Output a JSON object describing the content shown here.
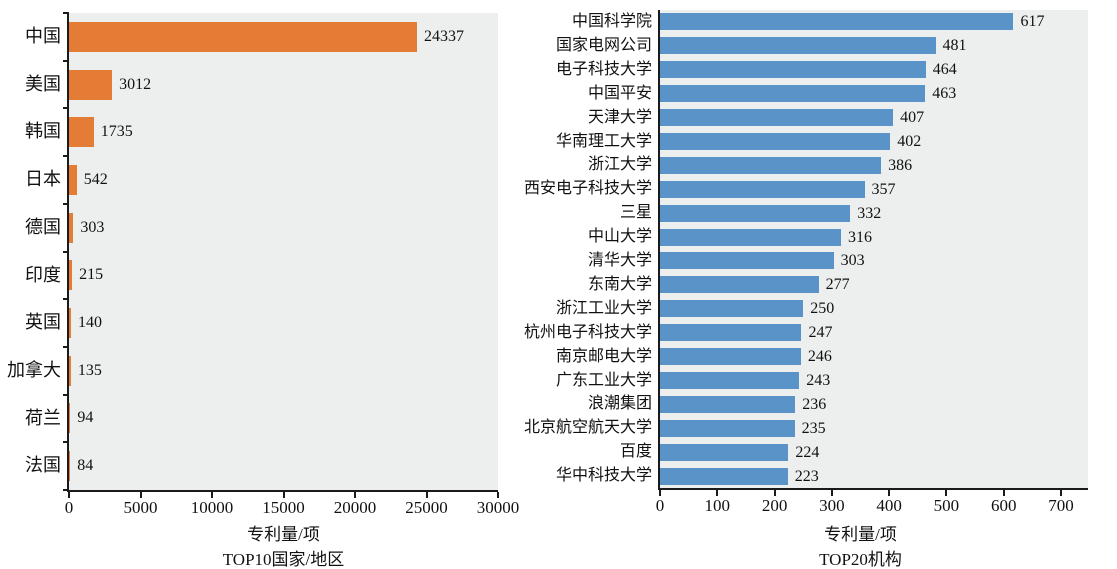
{
  "chart_data": [
    {
      "type": "bar",
      "orientation": "horizontal",
      "title": "TOP10国家/地区",
      "xlabel": "专利量/项",
      "categories": [
        "中国",
        "美国",
        "韩国",
        "日本",
        "德国",
        "印度",
        "英国",
        "加拿大",
        "荷兰",
        "法国"
      ],
      "values": [
        24337,
        3012,
        1735,
        542,
        303,
        215,
        140,
        135,
        94,
        84
      ],
      "xlim": [
        0,
        30000
      ],
      "xticks": [
        0,
        5000,
        10000,
        15000,
        20000,
        25000,
        30000
      ],
      "bar_color": "#e57c35",
      "plot_bg": "#edefee",
      "data_labels": true,
      "legend": "none",
      "grid": false
    },
    {
      "type": "bar",
      "orientation": "horizontal",
      "title": "TOP20机构",
      "xlabel": "专利量/项",
      "categories": [
        "中国科学院",
        "国家电网公司",
        "电子科技大学",
        "中国平安",
        "天津大学",
        "华南理工大学",
        "浙江大学",
        "西安电子科技大学",
        "三星",
        "中山大学",
        "清华大学",
        "东南大学",
        "浙江工业大学",
        "杭州电子科技大学",
        "南京邮电大学",
        "广东工业大学",
        "浪潮集团",
        "北京航空航天大学",
        "百度",
        "华中科技大学"
      ],
      "values": [
        617,
        481,
        464,
        463,
        407,
        402,
        386,
        357,
        332,
        316,
        303,
        277,
        250,
        247,
        246,
        243,
        236,
        235,
        224,
        223
      ],
      "xlim": [
        0,
        700
      ],
      "xticks": [
        0,
        100,
        200,
        300,
        400,
        500,
        600,
        700
      ],
      "bar_color": "#5a93c7",
      "plot_bg": "#edefee",
      "data_labels": true,
      "legend": "none",
      "grid": false
    }
  ],
  "colors": {
    "left_bar": "#e57c35",
    "right_bar": "#5a93c7",
    "plot_background": "#edefee",
    "axis": "#1a1a1a",
    "text": "#111111"
  }
}
